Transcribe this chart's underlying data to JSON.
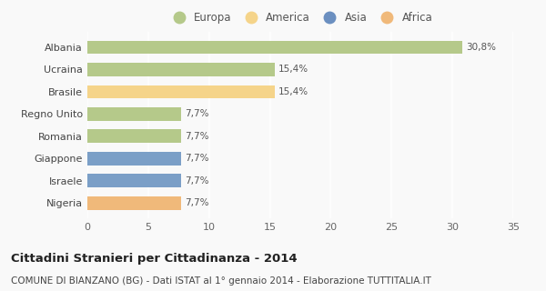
{
  "categories": [
    "Albania",
    "Ucraina",
    "Brasile",
    "Regno Unito",
    "Romania",
    "Giappone",
    "Israele",
    "Nigeria"
  ],
  "values": [
    30.8,
    15.4,
    15.4,
    7.7,
    7.7,
    7.7,
    7.7,
    7.7
  ],
  "labels": [
    "30,8%",
    "15,4%",
    "15,4%",
    "7,7%",
    "7,7%",
    "7,7%",
    "7,7%",
    "7,7%"
  ],
  "colors": [
    "#b5c98a",
    "#b5c98a",
    "#f5d48a",
    "#b5c98a",
    "#b5c98a",
    "#7b9fc7",
    "#7b9fc7",
    "#f0b97a"
  ],
  "legend": [
    {
      "label": "Europa",
      "color": "#b5c98a"
    },
    {
      "label": "America",
      "color": "#f5d48a"
    },
    {
      "label": "Asia",
      "color": "#6b8fc0"
    },
    {
      "label": "Africa",
      "color": "#f0b97a"
    }
  ],
  "xlim": [
    0,
    35
  ],
  "xticks": [
    0,
    5,
    10,
    15,
    20,
    25,
    30,
    35
  ],
  "title": "Cittadini Stranieri per Cittadinanza - 2014",
  "subtitle": "COMUNE DI BIANZANO (BG) - Dati ISTAT al 1° gennaio 2014 - Elaborazione TUTTITALIA.IT",
  "background_color": "#f9f9f9",
  "grid_color": "#ffffff",
  "label_fontsize": 7.5,
  "title_fontsize": 9.5,
  "subtitle_fontsize": 7.5,
  "bar_height": 0.6
}
